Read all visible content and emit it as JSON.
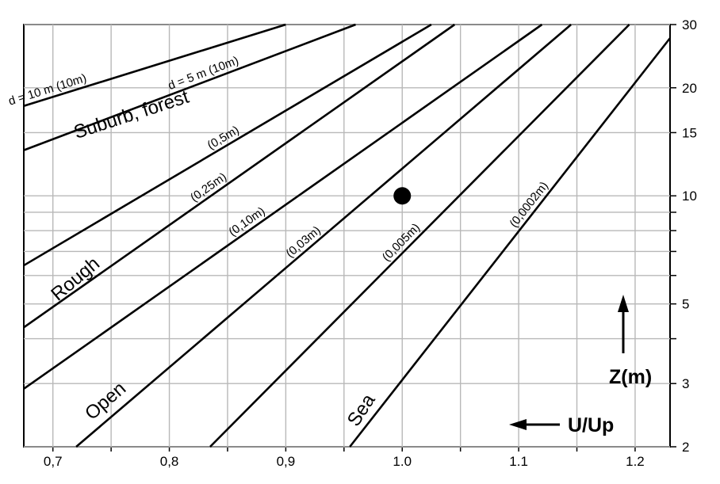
{
  "chart_data": {
    "type": "line",
    "title": "",
    "xlabel": "U/Up",
    "ylabel": "Z(m)",
    "xscale": "linear",
    "yscale": "log",
    "xlim": [
      0.675,
      1.23
    ],
    "ylim": [
      2,
      30
    ],
    "grid": true,
    "x_ticks": [
      0.7,
      0.75,
      0.8,
      0.85,
      0.9,
      0.95,
      1.0,
      1.05,
      1.1,
      1.15,
      1.2
    ],
    "x_tick_labels": [
      "0,7",
      "",
      "0,8",
      "",
      "0,9",
      "",
      "1.0",
      "",
      "1.1",
      "",
      "1.2"
    ],
    "y_ticks": [
      2,
      3,
      4,
      5,
      6,
      7,
      8,
      9,
      10,
      15,
      20,
      30
    ],
    "y_tick_labels": [
      "2",
      "3",
      "",
      "5",
      "",
      "",
      "",
      "",
      "10",
      "15",
      "20",
      "30"
    ],
    "series": [
      {
        "name": "d = 10 m (10m)",
        "points": [
          [
            0.675,
            17.8
          ],
          [
            0.9,
            30
          ]
        ]
      },
      {
        "name": "d = 5 m (10m)",
        "points": [
          [
            0.675,
            13.4
          ],
          [
            0.96,
            30
          ]
        ]
      },
      {
        "name": "(0,5m)",
        "points": [
          [
            0.675,
            6.4
          ],
          [
            1.025,
            30
          ]
        ]
      },
      {
        "name": "(0,25m)",
        "points": [
          [
            0.675,
            4.3
          ],
          [
            1.045,
            30
          ]
        ]
      },
      {
        "name": "(0,10m)",
        "points": [
          [
            0.675,
            2.9
          ],
          [
            1.12,
            30
          ]
        ]
      },
      {
        "name": "(0,03m)",
        "points": [
          [
            0.72,
            2
          ],
          [
            1.145,
            30
          ]
        ]
      },
      {
        "name": "(0,005m)",
        "points": [
          [
            0.835,
            2
          ],
          [
            1.195,
            30
          ]
        ]
      },
      {
        "name": "(0,0002m)",
        "points": [
          [
            0.955,
            2
          ],
          [
            1.23,
            27.5
          ]
        ]
      }
    ],
    "marker": {
      "x": 1.0,
      "y": 10
    },
    "region_labels": [
      "Suburb, forest",
      "Rough",
      "Open",
      "Sea"
    ]
  }
}
